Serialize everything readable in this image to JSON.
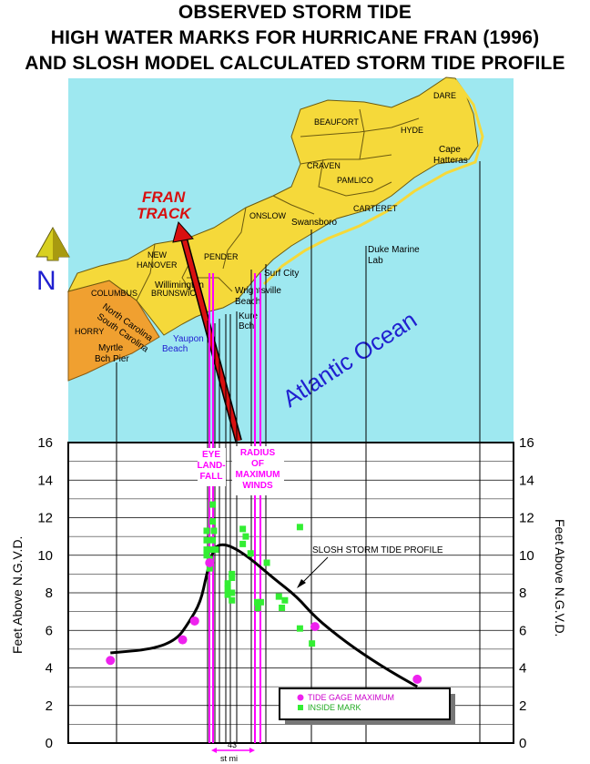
{
  "title": {
    "line1": "OBSERVED STORM TIDE",
    "line2": "HIGH WATER MARKS FOR HURRICANE FRAN (1996)",
    "line3": "AND SLOSH MODEL CALCULATED STORM TIDE PROFILE"
  },
  "map": {
    "ocean_label": "Atlantic Ocean",
    "north_label": "N",
    "track_label_1": "FRAN",
    "track_label_2": "TRACK",
    "state_label_nc": "North Carolina",
    "state_label_sc": "South Carolina",
    "counties": [
      "DARE",
      "BEAUFORT",
      "HYDE",
      "CRAVEN",
      "PAMLICO",
      "CARTERET",
      "ONSLOW",
      "PENDER",
      "NEW",
      "HANOVER",
      "COLUMBUS",
      "BRUNSWICK",
      "HORRY"
    ],
    "places": [
      "Cape",
      "Hatteras",
      "Swansboro",
      "Duke Marine",
      "Lab",
      "Surf  City",
      "Wrightsville",
      "Beach",
      "Kure",
      "Bch",
      "Willimington",
      "Yaupon",
      "Beach",
      "Myrtle",
      "Bch Pier"
    ]
  },
  "annotations": {
    "eye_landfall": [
      "EYE",
      "LAND-",
      "FALL"
    ],
    "radius_max_winds": [
      "RADIUS",
      "OF",
      "MAXIMUM",
      "WINDS"
    ],
    "slosh_label": "SLOSH STORM TIDE PROFILE",
    "distance_value": "43",
    "distance_unit": "st mi"
  },
  "legend": {
    "tide_gage": "TIDE GAGE MAXIMUM",
    "inside_mark": "INSIDE MARK"
  },
  "colors": {
    "ocean": "#9ee8f0",
    "land_nc": "#f5d93a",
    "land_sc": "#f0a030",
    "tide_gage": "#ee22ee",
    "inside_mark": "#33ee33",
    "track_arrow": "#d81010",
    "label_magenta": "#ff00ff",
    "label_blue": "#2020d0"
  },
  "chart_data": {
    "type": "scatter",
    "title": "OBSERVED STORM TIDE HIGH WATER MARKS FOR HURRICANE FRAN (1996) AND SLOSH MODEL CALCULATED STORM TIDE PROFILE",
    "ylabel": "Feet Above N.G.V.D.",
    "ylim": [
      0,
      16
    ],
    "yticks": [
      0,
      2,
      4,
      6,
      8,
      10,
      12,
      14,
      16
    ],
    "x_unit": "st mi",
    "xlim": [
      -22,
      52
    ],
    "series": [
      {
        "name": "TIDE GAGE MAXIMUM",
        "points": [
          [
            -15,
            4.4
          ],
          [
            -3,
            5.5
          ],
          [
            -1,
            6.5
          ],
          [
            1.5,
            9.6
          ],
          [
            19,
            6.2
          ],
          [
            36,
            3.4
          ]
        ]
      },
      {
        "name": "INSIDE MARK",
        "points": [
          [
            1.0,
            11.3
          ],
          [
            1.0,
            10.8
          ],
          [
            1.0,
            10.3
          ],
          [
            1.0,
            10.0
          ],
          [
            1.5,
            9.3
          ],
          [
            1.5,
            9.8
          ],
          [
            1.8,
            10.3
          ],
          [
            2.0,
            10.8
          ],
          [
            2.0,
            11.8
          ],
          [
            2.0,
            12.7
          ],
          [
            2.2,
            11.3
          ],
          [
            2.5,
            10.3
          ],
          [
            4.5,
            8.5
          ],
          [
            4.5,
            8.2
          ],
          [
            4.5,
            7.9
          ],
          [
            5.2,
            9.0
          ],
          [
            5.2,
            8.8
          ],
          [
            5.2,
            8.0
          ],
          [
            5.2,
            7.6
          ],
          [
            7.0,
            11.4
          ],
          [
            7.0,
            10.6
          ],
          [
            7.5,
            11.0
          ],
          [
            8.3,
            10.1
          ],
          [
            9.4,
            7.5
          ],
          [
            9.5,
            7.2
          ],
          [
            10.0,
            7.5
          ],
          [
            11.0,
            9.6
          ],
          [
            13.0,
            7.8
          ],
          [
            13.5,
            7.2
          ],
          [
            14.0,
            7.6
          ],
          [
            16.5,
            11.5
          ],
          [
            16.5,
            6.1
          ],
          [
            18.5,
            5.3
          ]
        ]
      },
      {
        "name": "SLOSH STORM TIDE PROFILE",
        "line": true,
        "points": [
          [
            -15,
            4.8
          ],
          [
            -8,
            5.0
          ],
          [
            -4,
            5.5
          ],
          [
            -2,
            6.4
          ],
          [
            0,
            7.5
          ],
          [
            1,
            9.0
          ],
          [
            2,
            10.2
          ],
          [
            3,
            10.6
          ],
          [
            5,
            10.5
          ],
          [
            8,
            9.9
          ],
          [
            12,
            8.8
          ],
          [
            16,
            7.8
          ],
          [
            19,
            6.7
          ],
          [
            24,
            5.4
          ],
          [
            30,
            4.1
          ],
          [
            36,
            3.0
          ]
        ]
      }
    ]
  }
}
